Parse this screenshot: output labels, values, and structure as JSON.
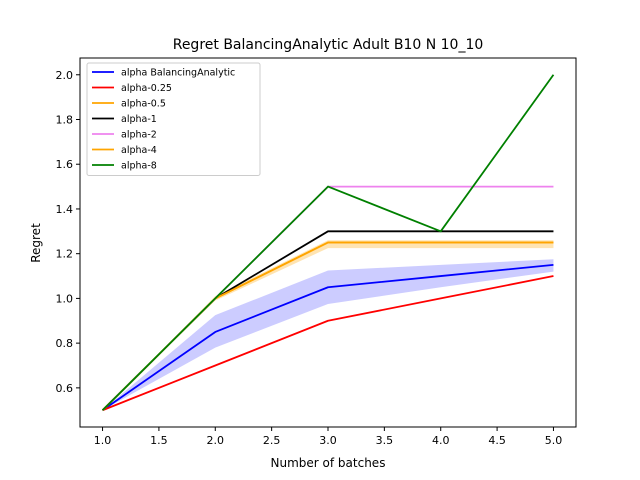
{
  "chart_data": {
    "type": "line",
    "title": "Regret BalancingAnalytic Adult B10 N 10_10",
    "xlabel": "Number of batches",
    "ylabel": "Regret",
    "xlim": [
      0.8,
      5.2
    ],
    "ylim": [
      0.425,
      2.075
    ],
    "xticks": [
      1.0,
      1.5,
      2.0,
      2.5,
      3.0,
      3.5,
      4.0,
      4.5,
      5.0
    ],
    "xtick_labels": [
      "1.0",
      "1.5",
      "2.0",
      "2.5",
      "3.0",
      "3.5",
      "4.0",
      "4.5",
      "5.0"
    ],
    "yticks": [
      0.6,
      0.8,
      1.0,
      1.2,
      1.4,
      1.6,
      1.8,
      2.0
    ],
    "ytick_labels": [
      "0.6",
      "0.8",
      "1.0",
      "1.2",
      "1.4",
      "1.6",
      "1.8",
      "2.0"
    ],
    "grid": false,
    "legend_position": "top-left",
    "x": [
      1,
      2,
      3,
      4,
      5
    ],
    "series": [
      {
        "name": "alpha BalancingAnalytic",
        "color": "#0000ff",
        "values": [
          0.5,
          0.85,
          1.05,
          1.1,
          1.15
        ],
        "band": {
          "lower": [
            0.5,
            0.78,
            0.975,
            1.05,
            1.12
          ],
          "upper": [
            0.5,
            0.925,
            1.125,
            1.15,
            1.175
          ],
          "color": "#0000ff",
          "opacity": 0.2
        }
      },
      {
        "name": "alpha-0.25",
        "color": "#ff0000",
        "values": [
          0.5,
          0.7,
          0.9,
          1.0,
          1.1
        ]
      },
      {
        "name": "alpha-0.5",
        "color": "#ffa500",
        "values": [
          0.5,
          1.0,
          1.25,
          1.25,
          1.25
        ],
        "band": {
          "lower": [
            0.5,
            0.99,
            1.225,
            1.225,
            1.225
          ],
          "upper": [
            0.5,
            1.01,
            1.26,
            1.26,
            1.26
          ],
          "color": "#ffa500",
          "opacity": 0.3
        }
      },
      {
        "name": "alpha-1",
        "color": "#000000",
        "values": [
          0.5,
          1.0,
          1.3,
          1.3,
          1.3
        ]
      },
      {
        "name": "alpha-2",
        "color": "#ee82ee",
        "values": [
          0.5,
          1.0,
          1.5,
          1.5,
          1.5
        ]
      },
      {
        "name": "alpha-4",
        "color": "#ffa500",
        "values": [
          0.5,
          1.0,
          1.25,
          1.25,
          1.25
        ]
      },
      {
        "name": "alpha-8",
        "color": "#008000",
        "values": [
          0.5,
          1.0,
          1.5,
          1.3,
          2.0
        ]
      }
    ]
  }
}
